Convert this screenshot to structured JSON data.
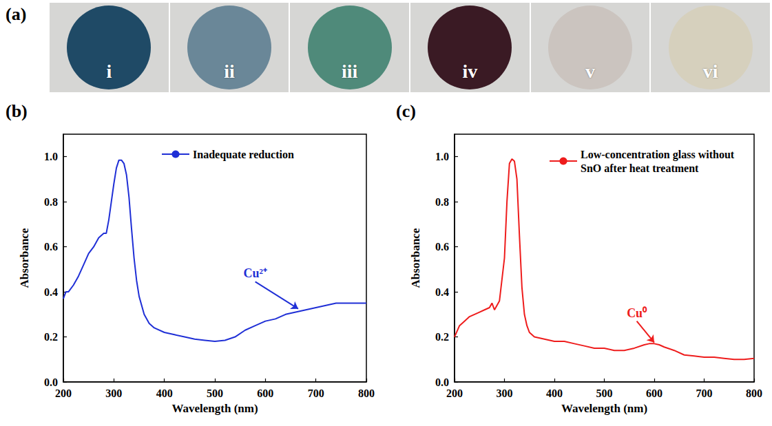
{
  "panel_a": {
    "panel": "(a)",
    "samples": [
      {
        "label": "i",
        "color": "#1f4a66"
      },
      {
        "label": "ii",
        "color": "#6a8798"
      },
      {
        "label": "iii",
        "color": "#4f8a7a"
      },
      {
        "label": "iv",
        "color": "#3a1a24"
      },
      {
        "label": "v",
        "color": "#cbc4bf"
      },
      {
        "label": "vi",
        "color": "#d6d0bd"
      }
    ]
  },
  "chart_data": [
    {
      "type": "line",
      "panel": "(b)",
      "x_label": "Wavelength (nm)",
      "y_label": "Absorbance",
      "xlim": [
        200,
        800
      ],
      "xticks": [
        200,
        300,
        400,
        500,
        600,
        700,
        800
      ],
      "ylim": [
        0,
        1.1
      ],
      "yticks": [
        {
          "value": 0,
          "label": "0.0"
        },
        0.2,
        0.4,
        0.6,
        0.8,
        {
          "value": 1,
          "label": "1.0"
        }
      ],
      "grid": false,
      "legend": "upper right",
      "x": [
        200,
        205,
        210,
        220,
        230,
        240,
        250,
        260,
        270,
        280,
        285,
        290,
        295,
        300,
        305,
        310,
        315,
        320,
        325,
        330,
        335,
        340,
        345,
        350,
        360,
        370,
        380,
        400,
        420,
        440,
        460,
        480,
        500,
        520,
        540,
        560,
        580,
        600,
        620,
        640,
        660,
        680,
        700,
        720,
        740,
        760,
        780,
        800
      ],
      "series": [
        {
          "name": "Inadequate reduction",
          "color": "#1f2fd6",
          "values": [
            0.37,
            0.4,
            0.4,
            0.43,
            0.47,
            0.52,
            0.57,
            0.6,
            0.64,
            0.66,
            0.66,
            0.72,
            0.8,
            0.88,
            0.95,
            0.985,
            0.985,
            0.97,
            0.92,
            0.82,
            0.68,
            0.55,
            0.45,
            0.38,
            0.3,
            0.26,
            0.24,
            0.22,
            0.21,
            0.2,
            0.19,
            0.185,
            0.18,
            0.185,
            0.2,
            0.23,
            0.25,
            0.27,
            0.28,
            0.3,
            0.31,
            0.32,
            0.33,
            0.34,
            0.35,
            0.35,
            0.35,
            0.35
          ]
        }
      ],
      "annotations": [
        {
          "text": "Cu²⁺",
          "x": 665,
          "y": 0.325
        }
      ]
    },
    {
      "type": "line",
      "panel": "(c)",
      "x_label": "Wavelength (nm)",
      "y_label": "Absorbance",
      "xlim": [
        200,
        800
      ],
      "xticks": [
        200,
        300,
        400,
        500,
        600,
        700,
        800
      ],
      "ylim": [
        0,
        1.1
      ],
      "yticks": [
        {
          "value": 0,
          "label": "0.0"
        },
        0.2,
        0.4,
        0.6,
        0.8,
        {
          "value": 1,
          "label": "1.0"
        }
      ],
      "grid": false,
      "legend": "upper right",
      "x": [
        200,
        210,
        220,
        230,
        240,
        250,
        260,
        270,
        275,
        280,
        290,
        300,
        305,
        310,
        315,
        320,
        325,
        330,
        335,
        340,
        345,
        350,
        360,
        380,
        400,
        420,
        440,
        460,
        480,
        500,
        520,
        540,
        560,
        580,
        590,
        600,
        610,
        620,
        640,
        660,
        680,
        700,
        720,
        740,
        760,
        780,
        800
      ],
      "series": [
        {
          "name": "Low-concentration glass without SnO after heat treatment",
          "color": "#ee1c1c",
          "values": [
            0.2,
            0.25,
            0.27,
            0.29,
            0.3,
            0.31,
            0.32,
            0.33,
            0.35,
            0.32,
            0.36,
            0.55,
            0.8,
            0.97,
            0.99,
            0.98,
            0.9,
            0.65,
            0.42,
            0.3,
            0.25,
            0.22,
            0.2,
            0.19,
            0.18,
            0.18,
            0.17,
            0.16,
            0.15,
            0.15,
            0.14,
            0.14,
            0.15,
            0.165,
            0.17,
            0.17,
            0.165,
            0.155,
            0.14,
            0.12,
            0.115,
            0.11,
            0.11,
            0.105,
            0.1,
            0.1,
            0.105
          ]
        }
      ],
      "annotations": [
        {
          "text": "Cu⁰",
          "x": 600,
          "y": 0.175
        }
      ]
    }
  ]
}
